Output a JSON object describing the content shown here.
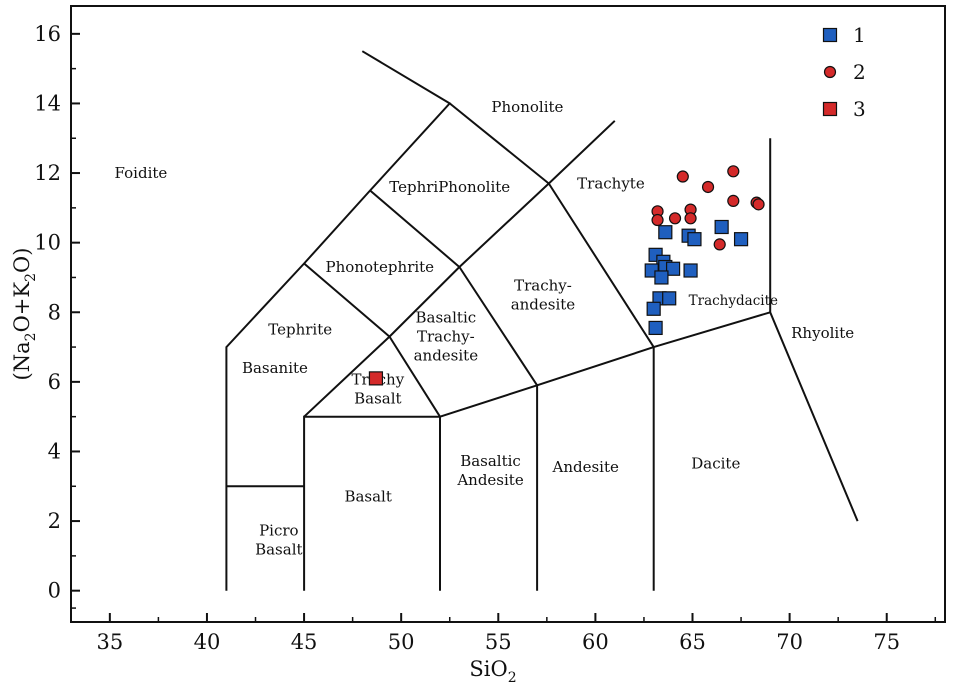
{
  "chart_data": {
    "type": "scatter",
    "title": "",
    "xlabel": "SiO2",
    "ylabel": "(Na2O+K2O)",
    "xlim": [
      33,
      78
    ],
    "ylim": [
      -0.9,
      16.8
    ],
    "x_ticks": [
      "35",
      "40",
      "45",
      "50",
      "55",
      "60",
      "65",
      "70",
      "75"
    ],
    "y_ticks": [
      "0",
      "2",
      "4",
      "6",
      "8",
      "10",
      "12",
      "14",
      "16"
    ],
    "grid": false,
    "legend_position": "top-right",
    "legend": [
      {
        "label": "1",
        "marker": "square",
        "color": "#1f5fbf"
      },
      {
        "label": "2",
        "marker": "circle",
        "color": "#d42a2a"
      },
      {
        "label": "3",
        "marker": "square",
        "color": "#d42a2a"
      }
    ],
    "fields": [
      {
        "name": "foidite",
        "text": [
          "Foidite"
        ],
        "x": 36.6,
        "y": 12.0
      },
      {
        "name": "phonolite",
        "text": [
          "Phonolite"
        ],
        "x": 56.5,
        "y": 13.9
      },
      {
        "name": "tephriphonolite",
        "text": [
          "TephriPhonolite"
        ],
        "x": 52.5,
        "y": 11.6
      },
      {
        "name": "trachyte",
        "text": [
          "Trachyte"
        ],
        "x": 60.8,
        "y": 11.7
      },
      {
        "name": "phonotephrite",
        "text": [
          "Phonotephrite"
        ],
        "x": 48.9,
        "y": 9.3
      },
      {
        "name": "trachyandesite",
        "text": [
          "Trachy-",
          "andesite"
        ],
        "x": 57.3,
        "y": 8.5
      },
      {
        "name": "trachydacite",
        "text": [
          "Trachydacite"
        ],
        "x": 67.1,
        "y": 8.35,
        "small": true
      },
      {
        "name": "tephrite",
        "text": [
          "Tephrite"
        ],
        "x": 44.8,
        "y": 7.5
      },
      {
        "name": "basanite",
        "text": [
          "Basanite"
        ],
        "x": 43.5,
        "y": 6.4
      },
      {
        "name": "basaltic-trachyandesite",
        "text": [
          "Basaltic",
          "Trachy-",
          "andesite"
        ],
        "x": 52.3,
        "y": 7.3
      },
      {
        "name": "trachybasalt",
        "text": [
          "Trachy",
          "Basalt"
        ],
        "x": 48.8,
        "y": 5.8
      },
      {
        "name": "rhyolite",
        "text": [
          "Rhyolite"
        ],
        "x": 71.7,
        "y": 7.4
      },
      {
        "name": "basalt",
        "text": [
          "Basalt"
        ],
        "x": 48.3,
        "y": 2.7
      },
      {
        "name": "basaltic-andesite",
        "text": [
          "Basaltic",
          "Andesite"
        ],
        "x": 54.6,
        "y": 3.45
      },
      {
        "name": "andesite",
        "text": [
          "Andesite"
        ],
        "x": 59.5,
        "y": 3.55
      },
      {
        "name": "dacite",
        "text": [
          "Dacite"
        ],
        "x": 66.2,
        "y": 3.65
      },
      {
        "name": "picrobasalt",
        "text": [
          "Picro",
          "Basalt"
        ],
        "x": 43.7,
        "y": 1.45
      }
    ],
    "series": [
      {
        "name": "1",
        "marker": "square",
        "color": "#1f5fbf",
        "points": [
          {
            "x": 63.6,
            "y": 10.3
          },
          {
            "x": 64.8,
            "y": 10.2
          },
          {
            "x": 65.1,
            "y": 10.1
          },
          {
            "x": 66.5,
            "y": 10.45
          },
          {
            "x": 67.5,
            "y": 10.1
          },
          {
            "x": 63.1,
            "y": 9.65
          },
          {
            "x": 63.5,
            "y": 9.45
          },
          {
            "x": 63.6,
            "y": 9.3
          },
          {
            "x": 62.9,
            "y": 9.2
          },
          {
            "x": 64.0,
            "y": 9.25
          },
          {
            "x": 64.9,
            "y": 9.2
          },
          {
            "x": 63.4,
            "y": 9.0
          },
          {
            "x": 63.3,
            "y": 8.4
          },
          {
            "x": 63.8,
            "y": 8.4
          },
          {
            "x": 63.0,
            "y": 8.1
          },
          {
            "x": 63.1,
            "y": 7.55
          }
        ]
      },
      {
        "name": "2",
        "marker": "circle",
        "color": "#d42a2a",
        "points": [
          {
            "x": 64.5,
            "y": 11.9
          },
          {
            "x": 67.1,
            "y": 12.05
          },
          {
            "x": 65.8,
            "y": 11.6
          },
          {
            "x": 67.1,
            "y": 11.2
          },
          {
            "x": 68.3,
            "y": 11.15
          },
          {
            "x": 68.4,
            "y": 11.1
          },
          {
            "x": 63.2,
            "y": 10.9
          },
          {
            "x": 64.9,
            "y": 10.95
          },
          {
            "x": 64.1,
            "y": 10.7
          },
          {
            "x": 63.2,
            "y": 10.65
          },
          {
            "x": 64.9,
            "y": 10.7
          },
          {
            "x": 66.4,
            "y": 9.95
          }
        ]
      },
      {
        "name": "3",
        "marker": "square",
        "color": "#d42a2a",
        "points": [
          {
            "x": 48.7,
            "y": 6.1
          }
        ]
      }
    ]
  }
}
